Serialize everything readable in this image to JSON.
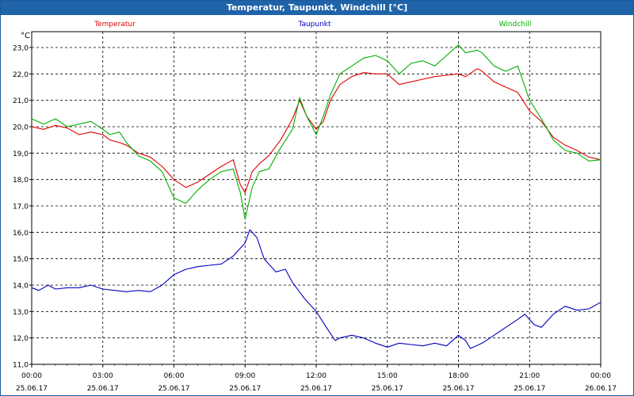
{
  "window": {
    "title": "Temperatur, Taupunkt, Windchill [°C]"
  },
  "chart_data": {
    "type": "line",
    "title": "Temperatur, Taupunkt, Windchill [°C]",
    "ylabel": "°C",
    "xlabel": "",
    "ylim": [
      11.0,
      23.6
    ],
    "xlim": [
      0,
      24
    ],
    "grid": true,
    "legend": "top",
    "yticks": [
      {
        "value": 11.0,
        "label": "11,0"
      },
      {
        "value": 12.0,
        "label": "12,0"
      },
      {
        "value": 13.0,
        "label": "13,0"
      },
      {
        "value": 14.0,
        "label": "14,0"
      },
      {
        "value": 15.0,
        "label": "15,0"
      },
      {
        "value": 16.0,
        "label": "16,0"
      },
      {
        "value": 17.0,
        "label": "17,0"
      },
      {
        "value": 18.0,
        "label": "18,0"
      },
      {
        "value": 19.0,
        "label": "19,0"
      },
      {
        "value": 20.0,
        "label": "20,0"
      },
      {
        "value": 21.0,
        "label": "21,0"
      },
      {
        "value": 22.0,
        "label": "22,0"
      },
      {
        "value": 23.0,
        "label": "23,0"
      }
    ],
    "xticks": [
      {
        "value": 0,
        "time": "00:00",
        "date": "25.06.17"
      },
      {
        "value": 3,
        "time": "03:00",
        "date": "25.06.17"
      },
      {
        "value": 6,
        "time": "06:00",
        "date": "25.06.17"
      },
      {
        "value": 9,
        "time": "09:00",
        "date": "25.06.17"
      },
      {
        "value": 12,
        "time": "12:00",
        "date": "25.06.17"
      },
      {
        "value": 15,
        "time": "15:00",
        "date": "25.06.17"
      },
      {
        "value": 18,
        "time": "18:00",
        "date": "25.06.17"
      },
      {
        "value": 21,
        "time": "21:00",
        "date": "25.06.17"
      },
      {
        "value": 24,
        "time": "00:00",
        "date": "26.06.17"
      }
    ],
    "series": [
      {
        "name": "Temperatur",
        "color": "#e00000",
        "points": [
          [
            0,
            20.0
          ],
          [
            0.5,
            19.9
          ],
          [
            1.0,
            20.05
          ],
          [
            1.5,
            19.95
          ],
          [
            2.0,
            19.7
          ],
          [
            2.5,
            19.8
          ],
          [
            3.0,
            19.7
          ],
          [
            3.3,
            19.5
          ],
          [
            3.7,
            19.4
          ],
          [
            4.0,
            19.3
          ],
          [
            4.5,
            19.0
          ],
          [
            5.0,
            18.85
          ],
          [
            5.5,
            18.5
          ],
          [
            6.0,
            18.0
          ],
          [
            6.5,
            17.7
          ],
          [
            7.0,
            17.9
          ],
          [
            7.5,
            18.2
          ],
          [
            8.0,
            18.5
          ],
          [
            8.5,
            18.75
          ],
          [
            8.8,
            17.8
          ],
          [
            9.0,
            17.5
          ],
          [
            9.3,
            18.3
          ],
          [
            9.6,
            18.6
          ],
          [
            10.0,
            18.9
          ],
          [
            10.5,
            19.5
          ],
          [
            11.0,
            20.3
          ],
          [
            11.3,
            21.0
          ],
          [
            11.6,
            20.4
          ],
          [
            12.0,
            19.9
          ],
          [
            12.3,
            20.2
          ],
          [
            12.6,
            21.0
          ],
          [
            13.0,
            21.6
          ],
          [
            13.5,
            21.9
          ],
          [
            14.0,
            22.05
          ],
          [
            14.5,
            22.0
          ],
          [
            15.0,
            22.0
          ],
          [
            15.5,
            21.6
          ],
          [
            16.0,
            21.7
          ],
          [
            16.5,
            21.8
          ],
          [
            17.0,
            21.9
          ],
          [
            17.5,
            21.95
          ],
          [
            18.0,
            22.0
          ],
          [
            18.3,
            21.9
          ],
          [
            18.8,
            22.2
          ],
          [
            19.0,
            22.1
          ],
          [
            19.5,
            21.7
          ],
          [
            20.0,
            21.5
          ],
          [
            20.5,
            21.3
          ],
          [
            21.0,
            20.6
          ],
          [
            21.5,
            20.2
          ],
          [
            22.0,
            19.6
          ],
          [
            22.5,
            19.3
          ],
          [
            23.0,
            19.1
          ],
          [
            23.5,
            18.85
          ],
          [
            24.0,
            18.75
          ]
        ]
      },
      {
        "name": "Taupunkt",
        "color": "#0000c0",
        "points": [
          [
            0,
            13.9
          ],
          [
            0.3,
            13.8
          ],
          [
            0.7,
            14.0
          ],
          [
            1.0,
            13.85
          ],
          [
            1.5,
            13.9
          ],
          [
            2.0,
            13.9
          ],
          [
            2.5,
            14.0
          ],
          [
            3.0,
            13.85
          ],
          [
            3.5,
            13.8
          ],
          [
            4.0,
            13.75
          ],
          [
            4.5,
            13.8
          ],
          [
            5.0,
            13.75
          ],
          [
            5.5,
            14.0
          ],
          [
            6.0,
            14.4
          ],
          [
            6.5,
            14.6
          ],
          [
            7.0,
            14.7
          ],
          [
            7.5,
            14.75
          ],
          [
            8.0,
            14.8
          ],
          [
            8.5,
            15.1
          ],
          [
            9.0,
            15.6
          ],
          [
            9.2,
            16.1
          ],
          [
            9.5,
            15.8
          ],
          [
            9.8,
            15.0
          ],
          [
            10.3,
            14.5
          ],
          [
            10.7,
            14.6
          ],
          [
            11.0,
            14.1
          ],
          [
            11.5,
            13.5
          ],
          [
            12.0,
            13.0
          ],
          [
            12.5,
            12.3
          ],
          [
            12.8,
            11.9
          ],
          [
            13.0,
            12.0
          ],
          [
            13.5,
            12.1
          ],
          [
            14.0,
            12.0
          ],
          [
            14.5,
            11.8
          ],
          [
            15.0,
            11.65
          ],
          [
            15.5,
            11.8
          ],
          [
            16.0,
            11.75
          ],
          [
            16.5,
            11.7
          ],
          [
            17.0,
            11.8
          ],
          [
            17.5,
            11.7
          ],
          [
            18.0,
            12.1
          ],
          [
            18.3,
            11.9
          ],
          [
            18.5,
            11.6
          ],
          [
            19.0,
            11.8
          ],
          [
            19.5,
            12.1
          ],
          [
            20.0,
            12.4
          ],
          [
            20.5,
            12.7
          ],
          [
            20.8,
            12.9
          ],
          [
            21.2,
            12.5
          ],
          [
            21.5,
            12.4
          ],
          [
            22.0,
            12.9
          ],
          [
            22.5,
            13.2
          ],
          [
            23.0,
            13.05
          ],
          [
            23.5,
            13.1
          ],
          [
            24.0,
            13.35
          ]
        ]
      },
      {
        "name": "Windchill",
        "color": "#00b000",
        "points": [
          [
            0,
            20.3
          ],
          [
            0.5,
            20.1
          ],
          [
            1.0,
            20.3
          ],
          [
            1.5,
            20.0
          ],
          [
            2.0,
            20.1
          ],
          [
            2.5,
            20.2
          ],
          [
            3.0,
            19.9
          ],
          [
            3.3,
            19.7
          ],
          [
            3.7,
            19.8
          ],
          [
            4.0,
            19.4
          ],
          [
            4.5,
            18.9
          ],
          [
            5.0,
            18.7
          ],
          [
            5.5,
            18.3
          ],
          [
            6.0,
            17.3
          ],
          [
            6.5,
            17.1
          ],
          [
            7.0,
            17.6
          ],
          [
            7.5,
            18.0
          ],
          [
            8.0,
            18.3
          ],
          [
            8.5,
            18.4
          ],
          [
            8.8,
            17.5
          ],
          [
            9.0,
            16.5
          ],
          [
            9.3,
            17.7
          ],
          [
            9.6,
            18.3
          ],
          [
            10.0,
            18.4
          ],
          [
            10.5,
            19.2
          ],
          [
            11.0,
            19.9
          ],
          [
            11.3,
            21.1
          ],
          [
            11.6,
            20.4
          ],
          [
            12.0,
            19.7
          ],
          [
            12.3,
            20.4
          ],
          [
            12.6,
            21.2
          ],
          [
            13.0,
            22.0
          ],
          [
            13.5,
            22.3
          ],
          [
            14.0,
            22.6
          ],
          [
            14.5,
            22.7
          ],
          [
            15.0,
            22.5
          ],
          [
            15.5,
            22.0
          ],
          [
            16.0,
            22.4
          ],
          [
            16.5,
            22.5
          ],
          [
            17.0,
            22.3
          ],
          [
            17.5,
            22.7
          ],
          [
            18.0,
            23.1
          ],
          [
            18.3,
            22.8
          ],
          [
            18.8,
            22.9
          ],
          [
            19.0,
            22.8
          ],
          [
            19.5,
            22.3
          ],
          [
            20.0,
            22.1
          ],
          [
            20.5,
            22.3
          ],
          [
            21.0,
            21.0
          ],
          [
            21.5,
            20.3
          ],
          [
            22.0,
            19.5
          ],
          [
            22.5,
            19.1
          ],
          [
            23.0,
            19.0
          ],
          [
            23.5,
            18.7
          ],
          [
            24.0,
            18.75
          ]
        ]
      }
    ]
  }
}
